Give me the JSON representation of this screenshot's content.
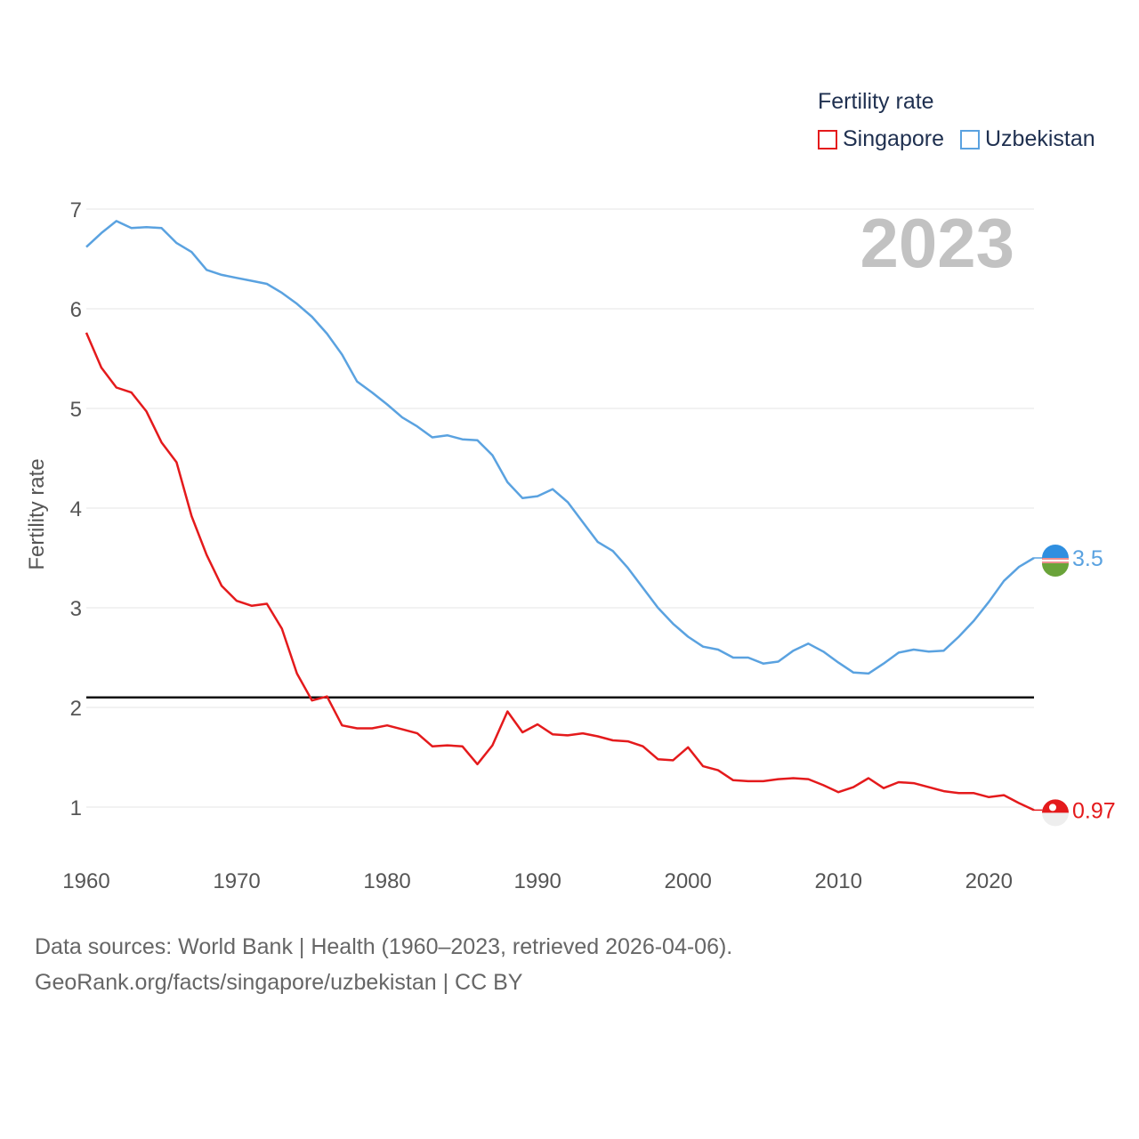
{
  "legend": {
    "title": "Fertility rate"
  },
  "big_year": "2023",
  "sources": {
    "line1": "Data sources: World Bank | Health (1960–2023, retrieved 2026-04-06).",
    "line2": "GeoRank.org/facts/singapore/uzbekistan | CC BY"
  },
  "chart_data": {
    "type": "line",
    "title": "Fertility rate",
    "xlabel": "",
    "ylabel": "Fertility rate",
    "xlim": [
      1960,
      2023
    ],
    "ylim": [
      0.5,
      7
    ],
    "xticks": [
      1960,
      1970,
      1980,
      1990,
      2000,
      2010,
      2020
    ],
    "yticks": [
      1,
      2,
      3,
      4,
      5,
      6,
      7
    ],
    "reference_line": {
      "y": 2.1
    },
    "series": [
      {
        "name": "Singapore",
        "color": "#e41a1c",
        "end_label": "0.97",
        "x": [
          1960,
          1961,
          1962,
          1963,
          1964,
          1965,
          1966,
          1967,
          1968,
          1969,
          1970,
          1971,
          1972,
          1973,
          1974,
          1975,
          1976,
          1977,
          1978,
          1979,
          1980,
          1981,
          1982,
          1983,
          1984,
          1985,
          1986,
          1987,
          1988,
          1989,
          1990,
          1991,
          1992,
          1993,
          1994,
          1995,
          1996,
          1997,
          1998,
          1999,
          2000,
          2001,
          2002,
          2003,
          2004,
          2005,
          2006,
          2007,
          2008,
          2009,
          2010,
          2011,
          2012,
          2013,
          2014,
          2015,
          2016,
          2017,
          2018,
          2019,
          2020,
          2021,
          2022,
          2023
        ],
        "values": [
          5.76,
          5.41,
          5.21,
          5.16,
          4.97,
          4.66,
          4.46,
          3.92,
          3.53,
          3.22,
          3.07,
          3.02,
          3.04,
          2.79,
          2.34,
          2.07,
          2.11,
          1.82,
          1.79,
          1.79,
          1.82,
          1.78,
          1.74,
          1.61,
          1.62,
          1.61,
          1.43,
          1.62,
          1.96,
          1.75,
          1.83,
          1.73,
          1.72,
          1.74,
          1.71,
          1.67,
          1.66,
          1.61,
          1.48,
          1.47,
          1.6,
          1.41,
          1.37,
          1.27,
          1.26,
          1.26,
          1.28,
          1.29,
          1.28,
          1.22,
          1.15,
          1.2,
          1.29,
          1.19,
          1.25,
          1.24,
          1.2,
          1.16,
          1.14,
          1.14,
          1.1,
          1.12,
          1.04,
          0.97
        ]
      },
      {
        "name": "Uzbekistan",
        "color": "#5aa2e0",
        "end_label": "3.5",
        "x": [
          1960,
          1961,
          1962,
          1963,
          1964,
          1965,
          1966,
          1967,
          1968,
          1969,
          1970,
          1971,
          1972,
          1973,
          1974,
          1975,
          1976,
          1977,
          1978,
          1979,
          1980,
          1981,
          1982,
          1983,
          1984,
          1985,
          1986,
          1987,
          1988,
          1989,
          1990,
          1991,
          1992,
          1993,
          1994,
          1995,
          1996,
          1997,
          1998,
          1999,
          2000,
          2001,
          2002,
          2003,
          2004,
          2005,
          2006,
          2007,
          2008,
          2009,
          2010,
          2011,
          2012,
          2013,
          2014,
          2015,
          2016,
          2017,
          2018,
          2019,
          2020,
          2021,
          2022,
          2023
        ],
        "values": [
          6.62,
          6.76,
          6.88,
          6.81,
          6.82,
          6.81,
          6.66,
          6.57,
          6.39,
          6.34,
          6.31,
          6.28,
          6.25,
          6.16,
          6.05,
          5.92,
          5.75,
          5.54,
          5.27,
          5.16,
          5.04,
          4.91,
          4.82,
          4.71,
          4.73,
          4.69,
          4.68,
          4.53,
          4.26,
          4.1,
          4.12,
          4.19,
          4.06,
          3.86,
          3.66,
          3.57,
          3.4,
          3.2,
          3.0,
          2.84,
          2.71,
          2.61,
          2.58,
          2.5,
          2.5,
          2.44,
          2.46,
          2.57,
          2.64,
          2.56,
          2.45,
          2.35,
          2.34,
          2.44,
          2.55,
          2.58,
          2.56,
          2.57,
          2.71,
          2.87,
          3.06,
          3.27,
          3.41,
          3.5
        ]
      }
    ]
  }
}
